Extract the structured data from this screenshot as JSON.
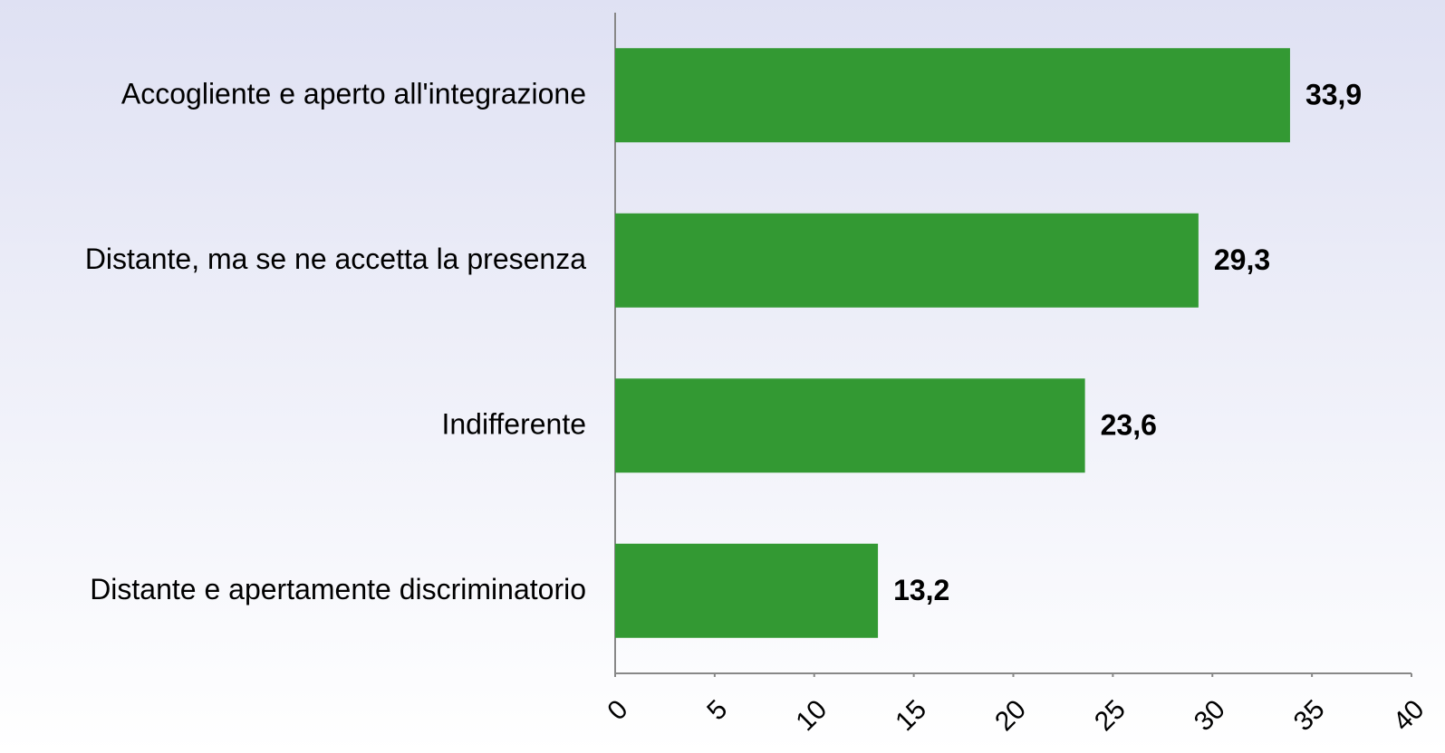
{
  "chart_data": {
    "type": "bar",
    "orientation": "horizontal",
    "categories": [
      "Accogliente e aperto all'integrazione",
      "Distante, ma se ne accetta la presenza",
      "Indifferente",
      "Distante e apertamente discriminatorio"
    ],
    "values": [
      33.9,
      29.3,
      23.6,
      13.2
    ],
    "value_labels": [
      "33,9",
      "29,3",
      "23,6",
      "13,2"
    ],
    "color": "#339933",
    "xlim": [
      0,
      40
    ],
    "xticks": [
      0,
      5,
      10,
      15,
      20,
      25,
      30,
      35,
      40
    ],
    "grid": false
  }
}
